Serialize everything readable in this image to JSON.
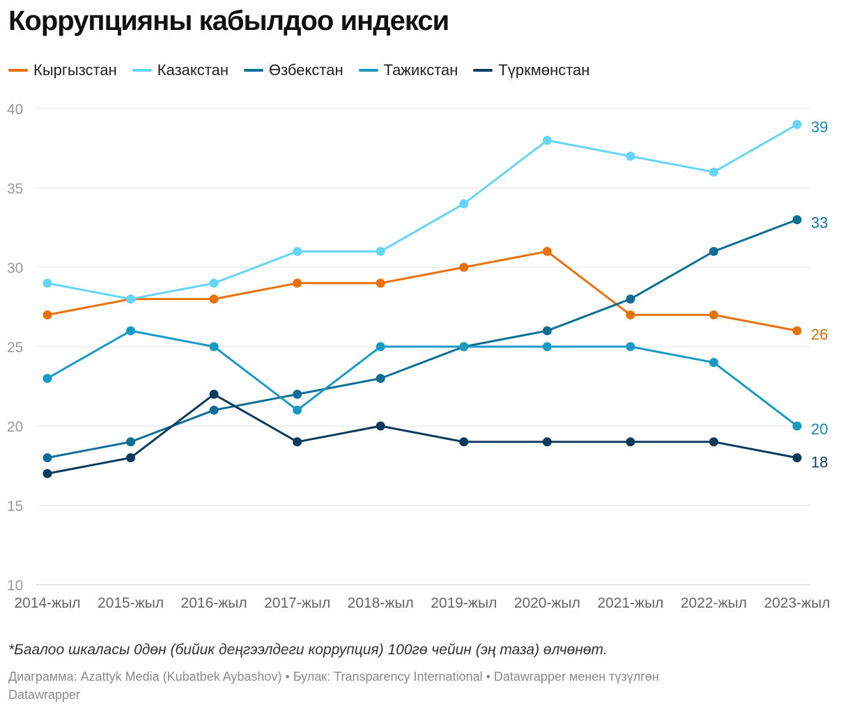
{
  "title": "Коррупцияны кабылдоо индекси",
  "note": "*Баалоо шкаласы 0дөн (бийик деңгээлдеги коррупция) 100гө чейин (эң таза) өлчөнөт.",
  "credits": {
    "line1": "Диаграмма: Azattyk Media (Kubatbek Aybashov) • Булак: Transparency International • Datawrapper менен түзүлгөн",
    "line2": "Datawrapper"
  },
  "chart_data": {
    "type": "line",
    "title": "Коррупцияны кабылдоо индекси",
    "xlabel": "",
    "ylabel": "",
    "ylim": [
      10,
      40
    ],
    "yticks": [
      10,
      15,
      20,
      25,
      30,
      35,
      40
    ],
    "grid": true,
    "legend_position": "top-left",
    "categories": [
      "2014-жыл",
      "2015-жыл",
      "2016-жыл",
      "2017-жыл",
      "2018-жыл",
      "2019-жыл",
      "2020-жыл",
      "2021-жыл",
      "2022-жыл",
      "2023-жыл"
    ],
    "series": [
      {
        "name": "Кыргызстан",
        "color": "#e8710a",
        "label_color": "#d96a07",
        "values": [
          27,
          28,
          28,
          29,
          29,
          30,
          31,
          27,
          27,
          26
        ],
        "end_label": "26"
      },
      {
        "name": "Казакстан",
        "color": "#66d4f7",
        "label_color": "#1c8aa8",
        "values": [
          29,
          28,
          29,
          31,
          31,
          34,
          38,
          37,
          36,
          39
        ],
        "end_label": "39"
      },
      {
        "name": "Өзбекстан",
        "color": "#0f6e96",
        "label_color": "#0f6e96",
        "values": [
          18,
          19,
          21,
          22,
          23,
          25,
          26,
          28,
          31,
          33
        ],
        "end_label": "33"
      },
      {
        "name": "Тажикстан",
        "color": "#199ac4",
        "label_color": "#1489b0",
        "values": [
          23,
          26,
          25,
          21,
          25,
          25,
          25,
          25,
          24,
          20
        ],
        "end_label": "20"
      },
      {
        "name": "Түркмөнстан",
        "color": "#0b3a5c",
        "label_color": "#0b3a5c",
        "values": [
          17,
          18,
          22,
          19,
          20,
          19,
          19,
          19,
          19,
          18
        ],
        "end_label": "18"
      }
    ]
  }
}
